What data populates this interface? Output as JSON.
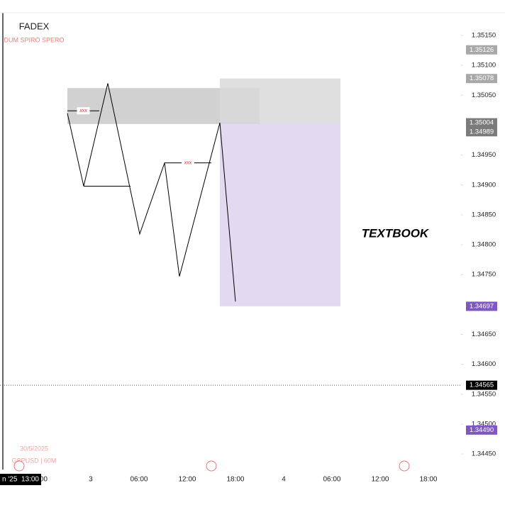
{
  "chart_data": {
    "type": "line",
    "title": "FADEX",
    "subtitle": "DUM SPIRO SPERO",
    "annotation": "TEXTBOOK",
    "date_label": "30/5/2025",
    "symbol_label": "GBPUSD | 60M",
    "crosshair_label": "n '25  13:00",
    "xlim": [
      -11.29,
      46.06
    ],
    "ylim": [
      1.34424,
      1.35188
    ],
    "xticks": [
      {
        "value": -6,
        "label": ":00"
      },
      {
        "value": 0,
        "label": "3"
      },
      {
        "value": 6,
        "label": "06:00"
      },
      {
        "value": 12,
        "label": "12:00"
      },
      {
        "value": 18,
        "label": "18:00"
      },
      {
        "value": 24,
        "label": "4"
      },
      {
        "value": 30,
        "label": "06:00"
      },
      {
        "value": 36,
        "label": "12:00"
      },
      {
        "value": 42,
        "label": "18:00"
      }
    ],
    "yticks": [
      {
        "value": 1.3515,
        "label": "1.35150"
      },
      {
        "value": 1.351,
        "label": "1.35100"
      },
      {
        "value": 1.3505,
        "label": "1.35050"
      },
      {
        "value": 1.3495,
        "label": "1.34950"
      },
      {
        "value": 1.349,
        "label": "1.34900"
      },
      {
        "value": 1.3485,
        "label": "1.34850"
      },
      {
        "value": 1.348,
        "label": "1.34800"
      },
      {
        "value": 1.3475,
        "label": "1.34750"
      },
      {
        "value": 1.3465,
        "label": "1.34650"
      },
      {
        "value": 1.346,
        "label": "1.34600"
      },
      {
        "value": 1.3455,
        "label": "1.34550"
      },
      {
        "value": 1.345,
        "label": "1.34500"
      },
      {
        "value": 1.3445,
        "label": "1.34450"
      }
    ],
    "series": [
      {
        "name": "path",
        "color": "#000000",
        "x": [
          -2.91,
          -0.88,
          2.12,
          6.09,
          9.18,
          11.03,
          16.06,
          18.0
        ],
        "values": [
          1.3502,
          1.34898,
          1.3507,
          1.34818,
          1.34937,
          1.34747,
          1.35004,
          1.34705
        ]
      }
    ],
    "zones": [
      {
        "color": "#c9c9c9",
        "x": [
          -2.91,
          21.0
        ],
        "y": [
          1.35002,
          1.35062
        ]
      },
      {
        "color": "#d9d9d9",
        "x": [
          16.06,
          31.06
        ],
        "y": [
          1.35004,
          1.35078
        ]
      },
      {
        "color": "#dcd3ee",
        "x": [
          16.06,
          31.06
        ],
        "y": [
          1.34697,
          1.35004
        ]
      }
    ],
    "levels": [
      {
        "x": [
          -2.91,
          1.06
        ],
        "value": 1.35024,
        "label": "xxx"
      },
      {
        "x": [
          -0.88,
          4.94
        ],
        "value": 1.34898
      },
      {
        "x": [
          9.18,
          15.0
        ],
        "value": 1.34937,
        "label": "xxx"
      }
    ],
    "price_line": 1.34565,
    "price_tags": [
      {
        "value": 1.35126,
        "color": "#a8a8a8"
      },
      {
        "value": 1.35078,
        "color": "#a8a8a8"
      },
      {
        "value": 1.35004,
        "color": "#7b7b7b"
      },
      {
        "value": 1.34989,
        "color": "#7b7b7b"
      },
      {
        "value": 1.34697,
        "color": "#7e57c2"
      },
      {
        "value": 1.34565,
        "color": "#000000"
      },
      {
        "value": 1.3449,
        "label": "1.34490",
        "color": "#7e57c2"
      }
    ]
  }
}
